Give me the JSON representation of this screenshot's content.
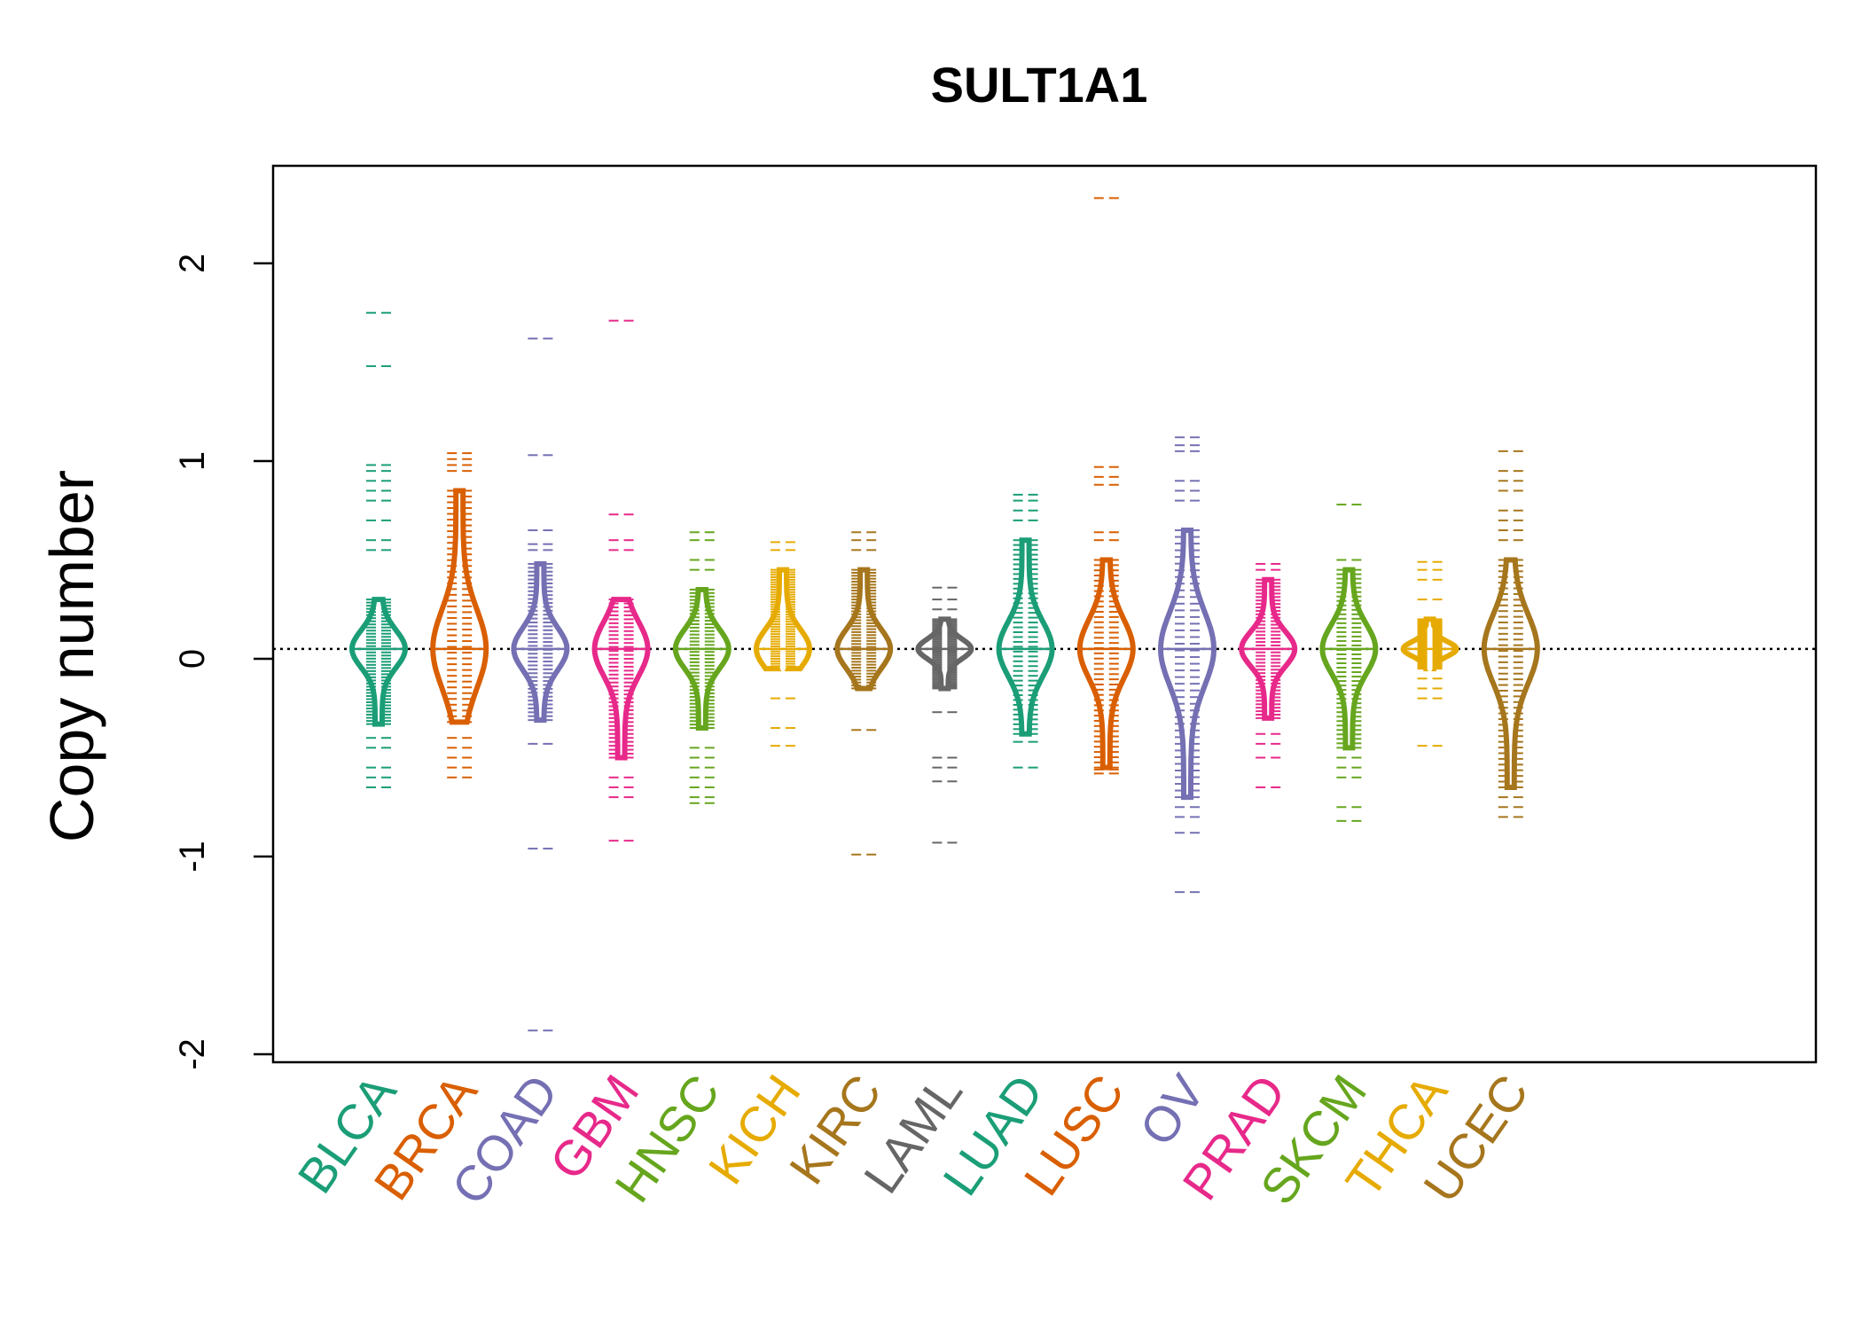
{
  "chart_data": {
    "type": "beanplot",
    "title": "SULT1A1",
    "ylabel": "Copy number",
    "xlabel": "",
    "ylim": [
      -2.0,
      2.5
    ],
    "yticks": [
      -2,
      -1,
      0,
      1,
      2
    ],
    "ytick_labels": [
      "-2",
      "-1",
      "0",
      "1",
      "2"
    ],
    "reference_line": 0.05,
    "grid": false,
    "legend": "none",
    "categories": [
      "BLCA",
      "BRCA",
      "COAD",
      "GBM",
      "HNSC",
      "KICH",
      "KIRC",
      "LAML",
      "LUAD",
      "LUSC",
      "OV",
      "PRAD",
      "SKCM",
      "THCA",
      "UCEC"
    ],
    "series": [
      {
        "category": "BLCA",
        "color": "#1b9e77",
        "min": -0.67,
        "max": 1.75,
        "core_low": -0.33,
        "core_high": 0.3,
        "outliers": [
          1.75,
          1.48,
          0.98,
          0.95,
          0.9,
          0.85,
          0.8,
          0.7,
          0.6,
          0.55,
          -0.4,
          -0.45,
          -0.55,
          -0.6,
          -0.65
        ]
      },
      {
        "category": "BRCA",
        "color": "#d95f02",
        "min": -0.61,
        "max": 1.04,
        "core_low": -0.32,
        "core_high": 0.85,
        "outliers": [
          1.04,
          1.01,
          0.98,
          0.95,
          -0.4,
          -0.45,
          -0.5,
          -0.55,
          -0.6
        ]
      },
      {
        "category": "COAD",
        "color": "#7570b3",
        "min": -1.88,
        "max": 1.62,
        "core_low": -0.31,
        "core_high": 0.48,
        "outliers": [
          1.62,
          1.03,
          0.65,
          0.58,
          0.55,
          -0.43,
          -0.96,
          -1.88
        ]
      },
      {
        "category": "GBM",
        "color": "#e7298a",
        "min": -0.92,
        "max": 1.71,
        "core_low": -0.5,
        "core_high": 0.3,
        "outliers": [
          1.71,
          0.73,
          0.6,
          0.55,
          -0.6,
          -0.65,
          -0.7,
          -0.92
        ]
      },
      {
        "category": "HNSC",
        "color": "#66a61e",
        "min": -0.73,
        "max": 0.64,
        "core_low": -0.35,
        "core_high": 0.35,
        "outliers": [
          0.64,
          0.6,
          0.5,
          0.45,
          -0.45,
          -0.5,
          -0.55,
          -0.6,
          -0.65,
          -0.7,
          -0.73
        ]
      },
      {
        "category": "KICH",
        "color": "#e6ab02",
        "min": -0.44,
        "max": 0.59,
        "core_low": -0.05,
        "core_high": 0.45,
        "outliers": [
          0.59,
          0.55,
          -0.2,
          -0.35,
          -0.44
        ]
      },
      {
        "category": "KIRC",
        "color": "#a6761d",
        "min": -0.99,
        "max": 0.64,
        "core_low": -0.15,
        "core_high": 0.45,
        "outliers": [
          0.64,
          0.6,
          0.55,
          -0.36,
          -0.99
        ]
      },
      {
        "category": "LAML",
        "color": "#666666",
        "min": -0.93,
        "max": 0.36,
        "core_low": -0.15,
        "core_high": 0.2,
        "outliers": [
          0.36,
          0.3,
          0.25,
          -0.27,
          -0.5,
          -0.55,
          -0.62,
          -0.93
        ]
      },
      {
        "category": "LUAD",
        "color": "#1b9e77",
        "min": -0.55,
        "max": 0.83,
        "core_low": -0.38,
        "core_high": 0.6,
        "outliers": [
          0.83,
          0.8,
          0.75,
          0.7,
          -0.42,
          -0.55
        ]
      },
      {
        "category": "LUSC",
        "color": "#d95f02",
        "min": -0.58,
        "max": 2.33,
        "core_low": -0.55,
        "core_high": 0.5,
        "outliers": [
          2.33,
          0.97,
          0.92,
          0.88,
          0.64,
          0.6,
          -0.56,
          -0.58
        ]
      },
      {
        "category": "OV",
        "color": "#7570b3",
        "min": -1.18,
        "max": 1.12,
        "core_low": -0.7,
        "core_high": 0.65,
        "outliers": [
          1.12,
          1.08,
          1.05,
          0.9,
          0.85,
          0.8,
          -0.75,
          -0.8,
          -0.88,
          -1.18
        ]
      },
      {
        "category": "PRAD",
        "color": "#e7298a",
        "min": -0.65,
        "max": 0.48,
        "core_low": -0.3,
        "core_high": 0.4,
        "outliers": [
          0.48,
          0.45,
          -0.38,
          -0.43,
          -0.5,
          -0.65
        ]
      },
      {
        "category": "SKCM",
        "color": "#66a61e",
        "min": -0.82,
        "max": 0.78,
        "core_low": -0.45,
        "core_high": 0.45,
        "outliers": [
          0.78,
          0.5,
          -0.5,
          -0.55,
          -0.6,
          -0.75,
          -0.82
        ]
      },
      {
        "category": "THCA",
        "color": "#e6ab02",
        "min": -0.44,
        "max": 0.49,
        "core_low": -0.05,
        "core_high": 0.2,
        "outliers": [
          0.49,
          0.45,
          0.4,
          0.3,
          -0.1,
          -0.15,
          -0.2,
          -0.44
        ]
      },
      {
        "category": "UCEC",
        "color": "#a6761d",
        "min": -0.8,
        "max": 1.05,
        "core_low": -0.65,
        "core_high": 0.5,
        "outliers": [
          1.05,
          0.95,
          0.9,
          0.85,
          0.75,
          0.7,
          0.65,
          0.6,
          -0.7,
          -0.75,
          -0.8
        ]
      }
    ]
  }
}
